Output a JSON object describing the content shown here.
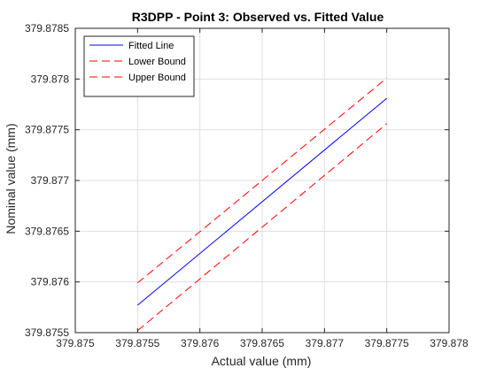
{
  "chart_data": {
    "type": "line",
    "title": "R3DPP - Point 3: Observed vs. Fitted Value",
    "xlabel": "Actual value (mm)",
    "ylabel": "Nominal value (mm)",
    "xlim": [
      379.875,
      379.878
    ],
    "ylim": [
      379.8755,
      379.8785
    ],
    "x_ticks": [
      "379.875",
      "379.8755",
      "379.876",
      "379.8765",
      "379.877",
      "379.8775",
      "379.878"
    ],
    "y_ticks": [
      "379.8755",
      "379.876",
      "379.8765",
      "379.877",
      "379.8775",
      "379.878",
      "379.8785"
    ],
    "grid": true,
    "legend_location": "top-left",
    "series": [
      {
        "name": "Fitted Line",
        "color": "#0000ff",
        "style": "solid",
        "x": [
          379.8755,
          379.8775
        ],
        "y": [
          379.87577,
          379.87781
        ]
      },
      {
        "name": "Lower Bound",
        "color": "#ff0000",
        "style": "dashed",
        "x": [
          379.8755,
          379.8775
        ],
        "y": [
          379.87552,
          379.87756
        ]
      },
      {
        "name": "Upper Bound",
        "color": "#ff0000",
        "style": "dashed",
        "x": [
          379.8755,
          379.8775
        ],
        "y": [
          379.87599,
          379.87801
        ]
      }
    ]
  }
}
